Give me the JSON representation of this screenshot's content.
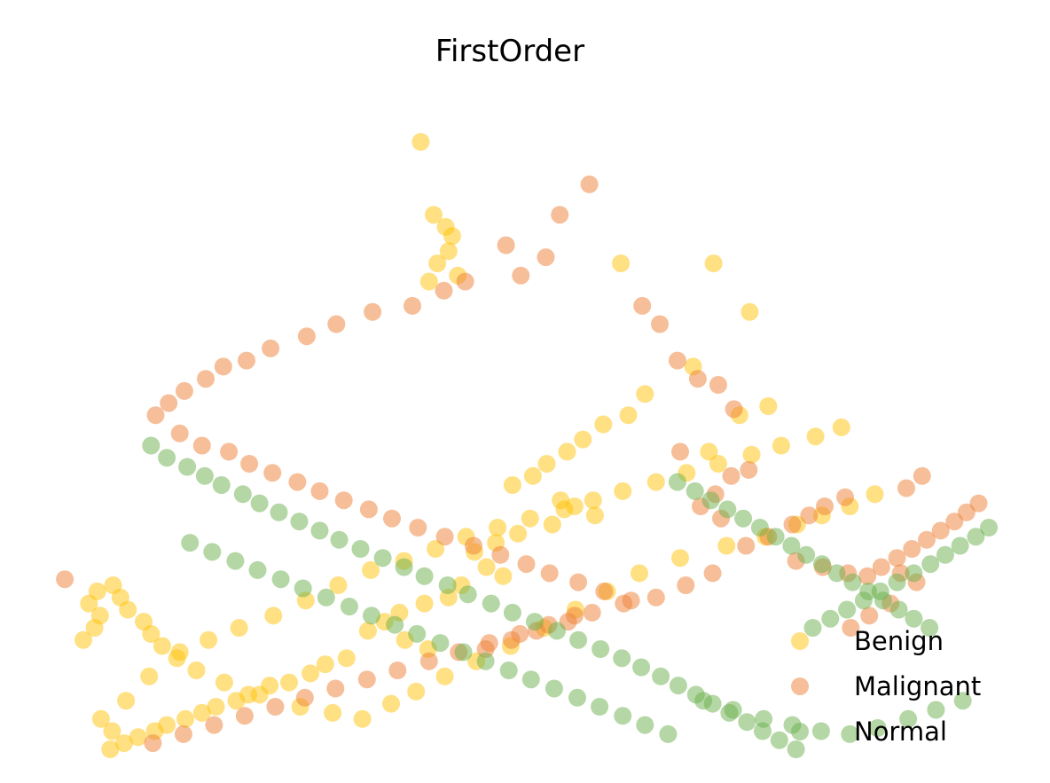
{
  "chart_data": {
    "type": "scatter",
    "title": "FirstOrder",
    "xlabel": "",
    "ylabel": "",
    "axes_visible": false,
    "grid": false,
    "legend_position": "bottom-right",
    "xlim": [
      0,
      100
    ],
    "ylim": [
      0,
      100
    ],
    "series": [
      {
        "name": "Benign",
        "color": "#ffc107",
        "opacity": 0.5,
        "points": [
          [
            38.7,
            100
          ],
          [
            40.1,
            88
          ],
          [
            41.4,
            86
          ],
          [
            42.1,
            84.5
          ],
          [
            41.7,
            82
          ],
          [
            40.5,
            80
          ],
          [
            42.7,
            78
          ],
          [
            39.6,
            77
          ],
          [
            60.3,
            80
          ],
          [
            70.3,
            80
          ],
          [
            74.2,
            72
          ],
          [
            68.1,
            63
          ],
          [
            62.9,
            58.5
          ],
          [
            61.1,
            55
          ],
          [
            58.4,
            53.5
          ],
          [
            56.2,
            51
          ],
          [
            54.5,
            49
          ],
          [
            52.3,
            47
          ],
          [
            50.8,
            45
          ],
          [
            48.6,
            43.5
          ],
          [
            53.8,
            41
          ],
          [
            55.3,
            40
          ],
          [
            57.5,
            38.5
          ],
          [
            52.9,
            37
          ],
          [
            49.2,
            35.5
          ],
          [
            46.8,
            34
          ],
          [
            44.5,
            32.5
          ],
          [
            45.8,
            30
          ],
          [
            47.6,
            28.5
          ],
          [
            43.1,
            27
          ],
          [
            41.7,
            25
          ],
          [
            39.1,
            24
          ],
          [
            36.4,
            22.5
          ],
          [
            34.8,
            21
          ],
          [
            33,
            19.5
          ],
          [
            37,
            18
          ],
          [
            39.5,
            16.5
          ],
          [
            30.7,
            15
          ],
          [
            28.4,
            14
          ],
          [
            26.8,
            12.5
          ],
          [
            24.5,
            11
          ],
          [
            22.4,
            10.5
          ],
          [
            20.1,
            9
          ],
          [
            18.8,
            8
          ],
          [
            16.6,
            7
          ],
          [
            15.1,
            6
          ],
          [
            13.3,
            5
          ],
          [
            11.3,
            4
          ],
          [
            10,
            3
          ],
          [
            8.2,
            2
          ],
          [
            6.7,
            1
          ],
          [
            5.2,
            0
          ],
          [
            3.5,
            20
          ],
          [
            4.1,
            22
          ],
          [
            2.3,
            18
          ],
          [
            2.9,
            24
          ],
          [
            3.8,
            26
          ],
          [
            5.5,
            27
          ],
          [
            6.3,
            25
          ],
          [
            7.1,
            23
          ],
          [
            8.8,
            21
          ],
          [
            9.6,
            19
          ],
          [
            10.8,
            17
          ],
          [
            12.4,
            15
          ],
          [
            14.5,
            13
          ],
          [
            17.5,
            11
          ],
          [
            21.3,
            9
          ],
          [
            25.7,
            7
          ],
          [
            29.2,
            6
          ],
          [
            32.4,
            5
          ],
          [
            35.5,
            7.5
          ],
          [
            38.2,
            9.5
          ],
          [
            41.3,
            12
          ],
          [
            44.7,
            14.5
          ],
          [
            48.4,
            17
          ],
          [
            52,
            20
          ],
          [
            55.4,
            23
          ],
          [
            58.8,
            26
          ],
          [
            62.3,
            29
          ],
          [
            66.7,
            31.5
          ],
          [
            71.7,
            33.5
          ],
          [
            75.9,
            35
          ],
          [
            79.3,
            37
          ],
          [
            82,
            38.5
          ],
          [
            85,
            40
          ],
          [
            87.7,
            42
          ],
          [
            5.4,
            3
          ],
          [
            4.2,
            5
          ],
          [
            6.9,
            8
          ],
          [
            9.4,
            12
          ],
          [
            12.7,
            16
          ],
          [
            15.8,
            18
          ],
          [
            19.1,
            20
          ],
          [
            22.8,
            22
          ],
          [
            26.3,
            24.5
          ],
          [
            29.8,
            27
          ],
          [
            33.3,
            29.5
          ],
          [
            36.9,
            31
          ],
          [
            40.3,
            33
          ],
          [
            43.6,
            35
          ],
          [
            47,
            36.5
          ],
          [
            50.5,
            38
          ],
          [
            54.2,
            39.5
          ],
          [
            57.3,
            41
          ],
          [
            60.5,
            42.5
          ],
          [
            64.1,
            44
          ],
          [
            67.4,
            45.5
          ],
          [
            70.8,
            47
          ],
          [
            74.4,
            48.5
          ],
          [
            77.6,
            50
          ],
          [
            81.3,
            51.5
          ],
          [
            84.1,
            53
          ],
          [
            69.8,
            49
          ],
          [
            73.1,
            55
          ],
          [
            76.2,
            56.5
          ]
        ]
      },
      {
        "name": "Malignant",
        "color": "#ee7f35",
        "opacity": 0.5,
        "points": [
          [
            0.3,
            28
          ],
          [
            56.9,
            93
          ],
          [
            53.7,
            88
          ],
          [
            47.9,
            83
          ],
          [
            52.2,
            81
          ],
          [
            49.5,
            78
          ],
          [
            43.5,
            77
          ],
          [
            41.2,
            75.5
          ],
          [
            37.8,
            73
          ],
          [
            33.5,
            72
          ],
          [
            29.6,
            70
          ],
          [
            26.4,
            68
          ],
          [
            22.5,
            66
          ],
          [
            19.9,
            64
          ],
          [
            17.4,
            63
          ],
          [
            15.5,
            61
          ],
          [
            13.2,
            59
          ],
          [
            11.5,
            57
          ],
          [
            10.1,
            55
          ],
          [
            12.7,
            52
          ],
          [
            15.1,
            50
          ],
          [
            18,
            49
          ],
          [
            20.2,
            47
          ],
          [
            22.7,
            45.5
          ],
          [
            25.4,
            44
          ],
          [
            27.8,
            42.5
          ],
          [
            30.4,
            41
          ],
          [
            33.1,
            39.5
          ],
          [
            35.6,
            38
          ],
          [
            38.4,
            36.5
          ],
          [
            41.3,
            35
          ],
          [
            44.4,
            33.5
          ],
          [
            47.3,
            32
          ],
          [
            50.1,
            30.5
          ],
          [
            52.6,
            29
          ],
          [
            55.7,
            27.5
          ],
          [
            58.5,
            26
          ],
          [
            61.4,
            24.5
          ],
          [
            55.3,
            22
          ],
          [
            52.5,
            20.5
          ],
          [
            49.4,
            19
          ],
          [
            46.1,
            17.5
          ],
          [
            42.8,
            16
          ],
          [
            39.6,
            14.5
          ],
          [
            36.2,
            13
          ],
          [
            32.9,
            11.5
          ],
          [
            29.5,
            10
          ],
          [
            26.2,
            8.5
          ],
          [
            23,
            7
          ],
          [
            19.7,
            5.5
          ],
          [
            16.4,
            4
          ],
          [
            13.1,
            2.5
          ],
          [
            9.8,
            1
          ],
          [
            62.6,
            73
          ],
          [
            64.5,
            70
          ],
          [
            66.4,
            64
          ],
          [
            68.6,
            61
          ],
          [
            70.8,
            60
          ],
          [
            72.5,
            56
          ],
          [
            74.1,
            46
          ],
          [
            72.2,
            45
          ],
          [
            70.5,
            42
          ],
          [
            66.7,
            49
          ],
          [
            68.9,
            40
          ],
          [
            71.1,
            38
          ],
          [
            79.2,
            31
          ],
          [
            82.1,
            30
          ],
          [
            84.8,
            29
          ],
          [
            86.9,
            28.5
          ],
          [
            88.4,
            30
          ],
          [
            90.1,
            31.5
          ],
          [
            91.7,
            33
          ],
          [
            93.3,
            34.5
          ],
          [
            94.8,
            36
          ],
          [
            96.3,
            37.5
          ],
          [
            97.6,
            39
          ],
          [
            98.9,
            40.5
          ],
          [
            90.5,
            29
          ],
          [
            92.2,
            27.5
          ],
          [
            89.4,
            24
          ],
          [
            87.1,
            22
          ],
          [
            85.1,
            20
          ],
          [
            92.8,
            45
          ],
          [
            91.1,
            43
          ],
          [
            84.5,
            41.5
          ],
          [
            82.3,
            40
          ],
          [
            80.6,
            38.5
          ],
          [
            78.8,
            37
          ],
          [
            76.2,
            35
          ],
          [
            73.8,
            33.5
          ],
          [
            70.2,
            29
          ],
          [
            67.3,
            27
          ],
          [
            64.1,
            25
          ],
          [
            60.6,
            24
          ],
          [
            57.2,
            22.5
          ],
          [
            54.6,
            21
          ],
          [
            51.2,
            19.5
          ],
          [
            48.5,
            18
          ],
          [
            45.7,
            16.5
          ]
        ]
      },
      {
        "name": "Normal",
        "color": "#6ab04c",
        "opacity": 0.5,
        "points": [
          [
            9.6,
            50
          ],
          [
            11.3,
            48
          ],
          [
            13.5,
            46.5
          ],
          [
            15.4,
            45
          ],
          [
            17.2,
            43.5
          ],
          [
            19.5,
            42
          ],
          [
            21.3,
            40.5
          ],
          [
            23.4,
            39
          ],
          [
            25.6,
            37.5
          ],
          [
            27.8,
            36
          ],
          [
            29.9,
            34.5
          ],
          [
            32.2,
            33
          ],
          [
            34.6,
            31.5
          ],
          [
            36.9,
            30
          ],
          [
            39.1,
            28.5
          ],
          [
            41.6,
            27
          ],
          [
            43.8,
            25.5
          ],
          [
            46.3,
            24
          ],
          [
            48.6,
            22.5
          ],
          [
            51,
            21
          ],
          [
            53.4,
            19.5
          ],
          [
            55.7,
            18
          ],
          [
            58.1,
            16.5
          ],
          [
            60.4,
            15
          ],
          [
            62.5,
            13.5
          ],
          [
            64.6,
            12
          ],
          [
            66.5,
            10.5
          ],
          [
            68.4,
            9
          ],
          [
            70.2,
            7.5
          ],
          [
            72,
            6
          ],
          [
            73.9,
            4.5
          ],
          [
            75.6,
            3
          ],
          [
            77.4,
            1.5
          ],
          [
            79.2,
            0
          ],
          [
            81,
            20
          ],
          [
            82.9,
            21.5
          ],
          [
            84.7,
            23
          ],
          [
            86.5,
            24.5
          ],
          [
            88.3,
            26
          ],
          [
            90.1,
            27.5
          ],
          [
            91.9,
            29
          ],
          [
            93.7,
            30.5
          ],
          [
            95.3,
            32
          ],
          [
            96.9,
            33.5
          ],
          [
            98.6,
            35
          ],
          [
            100,
            36.5
          ],
          [
            66.4,
            44
          ],
          [
            68.3,
            42.5
          ],
          [
            70,
            41
          ],
          [
            71.8,
            39.5
          ],
          [
            73.5,
            38
          ],
          [
            75.3,
            36.5
          ],
          [
            77,
            35
          ],
          [
            78.7,
            33.5
          ],
          [
            80.3,
            32
          ],
          [
            82,
            30.5
          ],
          [
            83.6,
            29
          ],
          [
            85.3,
            27.5
          ],
          [
            87,
            26
          ],
          [
            88.6,
            24.5
          ],
          [
            90.3,
            23
          ],
          [
            91.9,
            21.5
          ],
          [
            93.6,
            20
          ],
          [
            69.2,
            8
          ],
          [
            72.4,
            6.5
          ],
          [
            75.7,
            5
          ],
          [
            78.8,
            4
          ],
          [
            81.9,
            3
          ],
          [
            85,
            2.5
          ],
          [
            88,
            3.5
          ],
          [
            91.3,
            5
          ],
          [
            94.3,
            6.5
          ],
          [
            97.2,
            8
          ],
          [
            13.8,
            34
          ],
          [
            16.2,
            32.5
          ],
          [
            18.7,
            31
          ],
          [
            21.1,
            29.5
          ],
          [
            23.6,
            28
          ],
          [
            26,
            26.5
          ],
          [
            28.5,
            25
          ],
          [
            31,
            23.5
          ],
          [
            33.4,
            22
          ],
          [
            35.9,
            20.5
          ],
          [
            38.3,
            19
          ],
          [
            40.8,
            17.5
          ],
          [
            43.3,
            16
          ],
          [
            45.7,
            14.5
          ],
          [
            48.2,
            13
          ],
          [
            50.6,
            11.5
          ],
          [
            53.1,
            10
          ],
          [
            55.6,
            8.5
          ],
          [
            58,
            7
          ],
          [
            60.5,
            5.5
          ],
          [
            62.9,
            4
          ],
          [
            65.4,
            2.5
          ]
        ]
      }
    ]
  }
}
